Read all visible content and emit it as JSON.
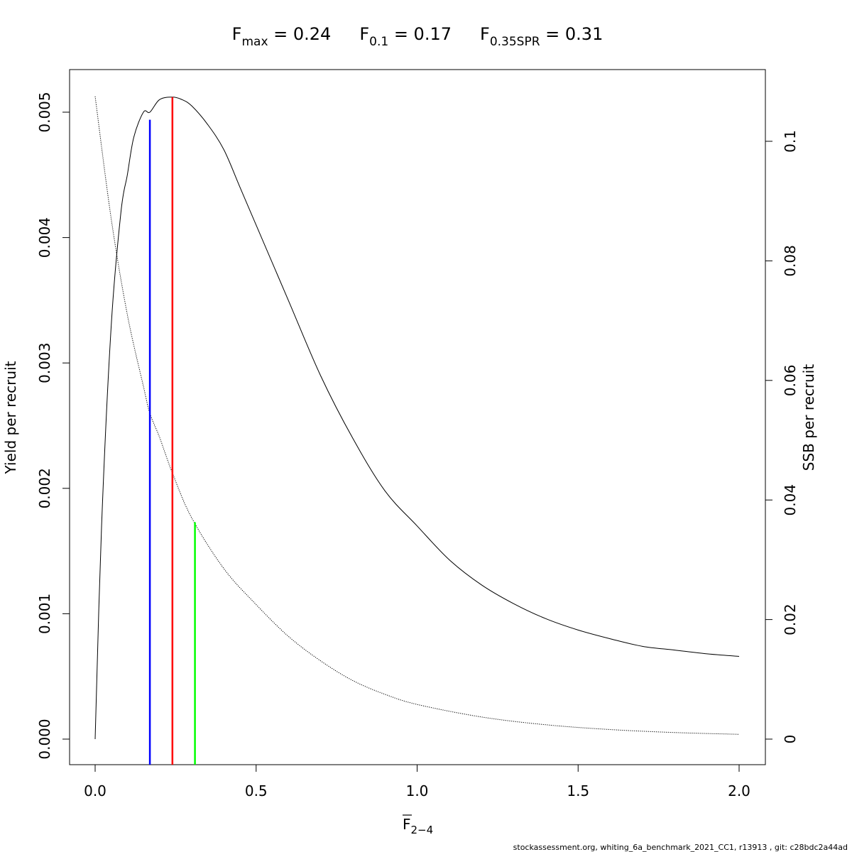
{
  "chart_data": {
    "type": "line",
    "title_parts": {
      "fmax": {
        "main": "F",
        "sub": "max",
        "rest": " = 0.24"
      },
      "f01": {
        "main": "F",
        "sub": "0.1",
        "rest": " = 0.17"
      },
      "fspr": {
        "main": "F",
        "sub": "0.35SPR",
        "rest": " = 0.31"
      }
    },
    "xlabel": {
      "main": "F",
      "sub": "2−4"
    },
    "ylabel_left": "Yield per recruit",
    "ylabel_right": "SSB per recruit",
    "xlim": [
      0.0,
      2.0
    ],
    "ylim_left": [
      0.0,
      0.005
    ],
    "ylim_right": [
      0.0,
      0.1
    ],
    "x_ticks": [
      "0.0",
      "0.5",
      "1.0",
      "1.5",
      "2.0"
    ],
    "y_left_ticks": [
      "0.000",
      "0.001",
      "0.002",
      "0.003",
      "0.004",
      "0.005"
    ],
    "y_right_ticks": [
      "0",
      "0.02",
      "0.04",
      "0.06",
      "0.08",
      "0.1"
    ],
    "grid": false,
    "series": [
      {
        "line_style": "solid",
        "color": "#000000",
        "axis": "left",
        "x": [
          0.0,
          0.02,
          0.05,
          0.08,
          0.1,
          0.12,
          0.15,
          0.17,
          0.2,
          0.24,
          0.27,
          0.3,
          0.35,
          0.4,
          0.45,
          0.5,
          0.6,
          0.7,
          0.8,
          0.9,
          1.0,
          1.1,
          1.2,
          1.3,
          1.4,
          1.5,
          1.6,
          1.7,
          1.8,
          1.9,
          2.0
        ],
        "values": [
          0.0,
          0.0017,
          0.0033,
          0.0042,
          0.0045,
          0.0048,
          0.005,
          0.005,
          0.0051,
          0.00512,
          0.0051,
          0.00505,
          0.0049,
          0.0047,
          0.0044,
          0.0041,
          0.0035,
          0.0029,
          0.0024,
          0.00198,
          0.0017,
          0.00143,
          0.00123,
          0.00108,
          0.00096,
          0.00087,
          0.0008,
          0.00074,
          0.00071,
          0.00068,
          0.00066
        ]
      },
      {
        "line_style": "dotted",
        "color": "#000000",
        "axis": "right",
        "x": [
          0.0,
          0.05,
          0.1,
          0.15,
          0.17,
          0.2,
          0.24,
          0.3,
          0.4,
          0.5,
          0.6,
          0.7,
          0.8,
          0.9,
          1.0,
          1.2,
          1.4,
          1.6,
          1.8,
          2.0
        ],
        "values": [
          0.1075,
          0.087,
          0.071,
          0.059,
          0.0545,
          0.0505,
          0.0445,
          0.037,
          0.0285,
          0.0225,
          0.0172,
          0.0131,
          0.0098,
          0.0075,
          0.0058,
          0.0037,
          0.0024,
          0.0016,
          0.0011,
          0.0008
        ]
      }
    ],
    "reference_lines": [
      {
        "color": "#0000ff",
        "x": 0.17,
        "y_top": 0.00494
      },
      {
        "color": "#ff0000",
        "x": 0.24,
        "y_top": 0.00512
      },
      {
        "color": "#00ff00",
        "x": 0.31,
        "y_top": 0.00173
      }
    ]
  },
  "footer": "stockassessment.org, whiting_6a_benchmark_2021_CC1, r13913 , git: c28bdc2a44ad"
}
